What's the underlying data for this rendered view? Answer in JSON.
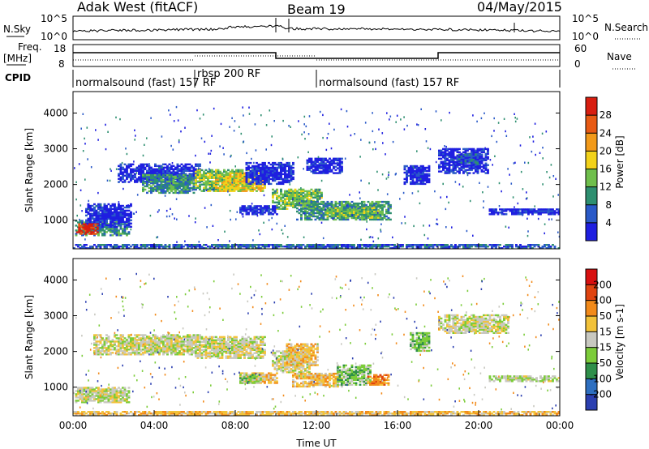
{
  "header": {
    "radar": "Adak West (fitACF)",
    "beam": "Beam 19",
    "date": "04/May/2015"
  },
  "top_panels": {
    "nsky_label": "N.Sky",
    "nsky_ticks": [
      "10^5",
      "10^0"
    ],
    "nsearch_label": "N.Search",
    "nsearch_ticks": [
      "10^5",
      "10^0"
    ],
    "freq_label": "Freq.",
    "freq_unit": "[MHz]",
    "freq_ticks": [
      "18",
      "8"
    ],
    "nave_label": "Nave",
    "nave_ticks": [
      "60",
      "0"
    ],
    "cpid_label": "CPID",
    "cpid_segments": [
      {
        "label": "normalsound (fast) 157 RF",
        "start_hr": 0,
        "end_hr": 6
      },
      {
        "label": "rbsp 200 RF",
        "start_hr": 6,
        "end_hr": 12
      },
      {
        "label": "normalsound (fast) 157 RF",
        "start_hr": 12,
        "end_hr": 24
      }
    ]
  },
  "chart_data": [
    {
      "type": "heatmap",
      "title": "Power",
      "ylabel": "Slant Range [km]",
      "xlabel": "Time UT",
      "xlim": [
        0,
        24
      ],
      "ylim": [
        200,
        4600
      ],
      "x_ticks": [
        "00:00",
        "04:00",
        "08:00",
        "12:00",
        "16:00",
        "20:00",
        "00:00"
      ],
      "y_ticks": [
        1000,
        2000,
        3000,
        4000
      ],
      "colorbar": {
        "label": "Power [dB]",
        "ticks": [
          "4",
          "8",
          "12",
          "16",
          "20",
          "24",
          "28"
        ],
        "colors": [
          "#1f1fe0",
          "#2a5ac8",
          "#2e8f70",
          "#6fbf4c",
          "#f2d21a",
          "#f29a1a",
          "#e85a14",
          "#d81e10"
        ]
      },
      "regions": [
        {
          "t0": 0.1,
          "t1": 2.8,
          "r0": 560,
          "r1": 1000,
          "level": 2
        },
        {
          "t0": 0.6,
          "t1": 2.9,
          "r0": 800,
          "r1": 1450,
          "level": 0
        },
        {
          "t0": 0.15,
          "t1": 1.2,
          "r0": 600,
          "r1": 900,
          "level": 7
        },
        {
          "t0": 2.2,
          "t1": 6.2,
          "r0": 2050,
          "r1": 2550,
          "level": 0
        },
        {
          "t0": 3.4,
          "t1": 6.0,
          "r0": 1750,
          "r1": 2250,
          "level": 2
        },
        {
          "t0": 6.0,
          "t1": 8.8,
          "r0": 1800,
          "r1": 2400,
          "level": 3
        },
        {
          "t0": 7.0,
          "t1": 9.4,
          "r0": 1800,
          "r1": 2300,
          "level": 4
        },
        {
          "t0": 8.5,
          "t1": 10.8,
          "r0": 2000,
          "r1": 2600,
          "level": 0
        },
        {
          "t0": 9.8,
          "t1": 12.2,
          "r0": 1300,
          "r1": 1850,
          "level": 3
        },
        {
          "t0": 8.2,
          "t1": 10.0,
          "r0": 1150,
          "r1": 1400,
          "level": 0
        },
        {
          "t0": 11.0,
          "t1": 15.6,
          "r0": 1000,
          "r1": 1500,
          "level": 2
        },
        {
          "t0": 12.5,
          "t1": 15.2,
          "r0": 1050,
          "r1": 1350,
          "level": 3
        },
        {
          "t0": 11.5,
          "t1": 13.2,
          "r0": 2300,
          "r1": 2750,
          "level": 0
        },
        {
          "t0": 16.3,
          "t1": 17.6,
          "r0": 2000,
          "r1": 2500,
          "level": 0
        },
        {
          "t0": 18.0,
          "t1": 20.5,
          "r0": 2300,
          "r1": 3000,
          "level": 0
        },
        {
          "t0": 19.0,
          "t1": 20.2,
          "r0": 2550,
          "r1": 2850,
          "level": 1
        },
        {
          "t0": 20.5,
          "t1": 24.0,
          "r0": 1150,
          "r1": 1300,
          "level": 0
        },
        {
          "t0": 0.0,
          "t1": 24.0,
          "r0": 200,
          "r1": 330,
          "level": 1
        }
      ]
    },
    {
      "type": "heatmap",
      "title": "Velocity",
      "ylabel": "Slant Range [km]",
      "xlabel": "Time UT",
      "xlim": [
        0,
        24
      ],
      "ylim": [
        200,
        4600
      ],
      "x_ticks": [
        "00:00",
        "04:00",
        "08:00",
        "12:00",
        "16:00",
        "20:00",
        "00:00"
      ],
      "y_ticks": [
        1000,
        2000,
        3000,
        4000
      ],
      "colorbar": {
        "label": "Velocity [m s-1]",
        "ticks": [
          "200",
          "100",
          "50",
          "15",
          "-15",
          "-50",
          "-100",
          "-200"
        ],
        "colors": [
          "#2b3fb0",
          "#2e6fc0",
          "#2f8f4a",
          "#7ccc3a",
          "#c8c8c0",
          "#f2c23a",
          "#f28a1a",
          "#e04410",
          "#d81010"
        ]
      },
      "regions": [
        {
          "t0": 0.1,
          "t1": 2.8,
          "r0": 560,
          "r1": 1000,
          "level": 4
        },
        {
          "t0": 1.0,
          "t1": 6.2,
          "r0": 1900,
          "r1": 2450,
          "level": 4
        },
        {
          "t0": 6.0,
          "t1": 9.4,
          "r0": 1800,
          "r1": 2400,
          "level": 4
        },
        {
          "t0": 9.8,
          "t1": 11.6,
          "r0": 1400,
          "r1": 2000,
          "level": 4
        },
        {
          "t0": 10.5,
          "t1": 12.0,
          "r0": 1600,
          "r1": 2200,
          "level": 5
        },
        {
          "t0": 8.2,
          "t1": 10.0,
          "r0": 1100,
          "r1": 1400,
          "level": 5
        },
        {
          "t0": 8.2,
          "t1": 9.2,
          "r0": 1100,
          "r1": 1350,
          "level": 3
        },
        {
          "t0": 10.8,
          "t1": 13.2,
          "r0": 1000,
          "r1": 1400,
          "level": 5
        },
        {
          "t0": 13.0,
          "t1": 14.6,
          "r0": 1050,
          "r1": 1600,
          "level": 3
        },
        {
          "t0": 14.5,
          "t1": 15.5,
          "r0": 1050,
          "r1": 1350,
          "level": 6
        },
        {
          "t0": 16.6,
          "t1": 17.6,
          "r0": 2000,
          "r1": 2500,
          "level": 3
        },
        {
          "t0": 18.0,
          "t1": 21.5,
          "r0": 2500,
          "r1": 3000,
          "level": 4
        },
        {
          "t0": 20.5,
          "t1": 24.0,
          "r0": 1150,
          "r1": 1300,
          "level": 4
        },
        {
          "t0": 0.0,
          "t1": 24.0,
          "r0": 200,
          "r1": 330,
          "level": 5
        }
      ]
    }
  ],
  "cells": {
    "range_min": 200,
    "range_step": 45,
    "time_step": 0.1,
    "density": 0.62
  },
  "noise": {
    "count": 450,
    "base_rate": 0.015,
    "colors_power": [
      "#1f1fe0",
      "#2a5ac8",
      "#2e8f70"
    ],
    "colors_velocity": [
      "#2b3fb0",
      "#7ccc3a",
      "#f28a1a",
      "#c8c8c0"
    ]
  },
  "x_axis_title": "Time UT"
}
